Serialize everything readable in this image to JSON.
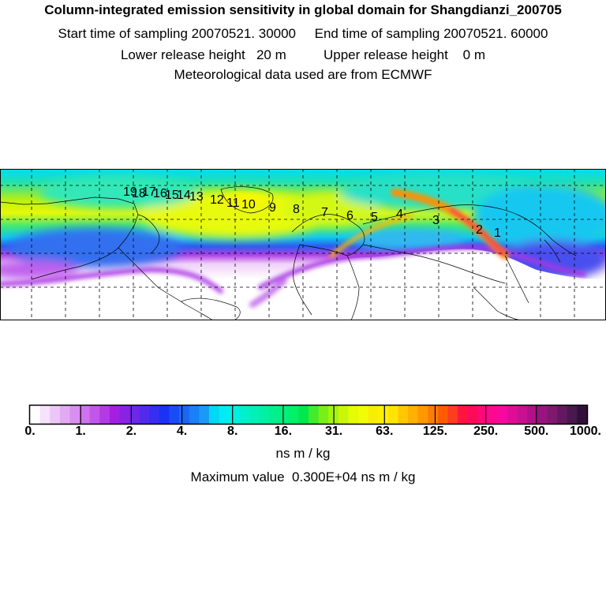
{
  "header": {
    "title": "Column-integrated emission sensitivity in global domain for Shangdianzi_200705",
    "line2": "Start time of sampling 20070521. 30000     End time of sampling 20070521. 60000",
    "line3": "Lower release height   20 m          Upper release height    0 m",
    "line4": "Meteorological data used are from ECMWF"
  },
  "trajectory_labels": [
    "1",
    "2",
    "3",
    "4",
    "5",
    "6",
    "7",
    "8",
    "9",
    "10",
    "11",
    "12",
    "13",
    "14",
    "15",
    "16",
    "17",
    "18",
    "19"
  ],
  "colorbar": {
    "labels": [
      "0.",
      "1.",
      "2.",
      "4.",
      "8.",
      "16.",
      "31.",
      "63.",
      "125.",
      "250.",
      "500.",
      "1000."
    ],
    "colors": [
      "#ffffff",
      "#f6e2fb",
      "#edc6f8",
      "#e3aaf4",
      "#d98ef1",
      "#cf72ee",
      "#c356ea",
      "#b43ae6",
      "#a51fe2",
      "#8a22e6",
      "#6e26ea",
      "#522aee",
      "#362ef2",
      "#1a32f6",
      "#1a4cf6",
      "#1a66f6",
      "#1a80f6",
      "#1a9af6",
      "#00d8f6",
      "#00ecf2",
      "#00f0e0",
      "#00f0cc",
      "#00f0b8",
      "#00f0a4",
      "#00f090",
      "#00f07c",
      "#00f068",
      "#00e84c",
      "#40ec2c",
      "#78f018",
      "#a4f40c",
      "#c8f808",
      "#e4fc04",
      "#f2fc04",
      "#f8ee04",
      "#fff000",
      "#ffe400",
      "#ffc800",
      "#ffb000",
      "#ff9800",
      "#ff7c00",
      "#ff5c00",
      "#ff3c20",
      "#ff1440",
      "#ff0a5a",
      "#ff0878",
      "#ff0890",
      "#f808a0",
      "#e00c98",
      "#c81090",
      "#b01088",
      "#981480",
      "#801870",
      "#641860",
      "#481850",
      "#301038"
    ],
    "unit": "ns m / kg",
    "max_value": "Maximum value  0.300E+04 ns m / kg"
  }
}
